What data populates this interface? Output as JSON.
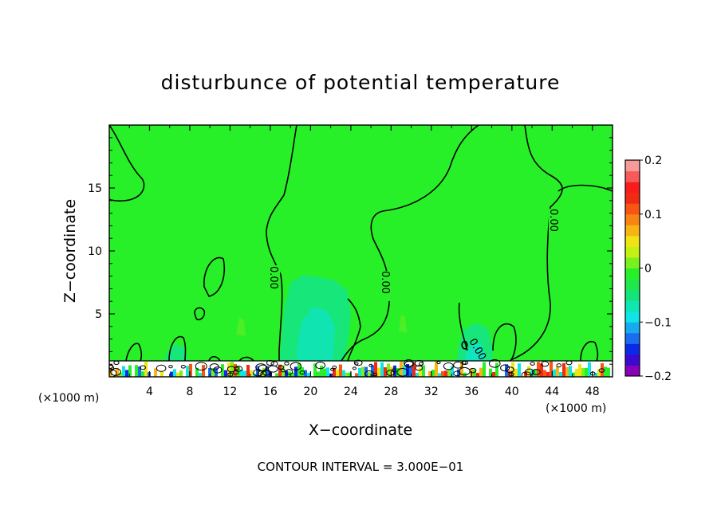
{
  "chart_data": {
    "type": "heatmap",
    "title": "disturbunce of potential temperature",
    "xlabel": "X−coordinate",
    "ylabel": "Z−coordinate",
    "x_unit": "(×1000 m)",
    "y_unit": "(×1000 m)",
    "xlim": [
      0,
      50
    ],
    "ylim": [
      0,
      20
    ],
    "x_ticks": [
      4,
      8,
      12,
      16,
      20,
      24,
      28,
      32,
      36,
      40,
      44,
      48
    ],
    "y_ticks": [
      5,
      10,
      15
    ],
    "colorbar": {
      "range": [
        -0.2,
        0.2
      ],
      "tick_values": [
        0.2,
        0.1,
        0,
        -0.1,
        -0.2
      ],
      "tick_labels": [
        "0.2",
        "0.1",
        "0",
        "−0.1",
        "−0.2"
      ],
      "colors": [
        "#8a00b8",
        "#3a0ad0",
        "#0a2ae8",
        "#1a6cf0",
        "#18aaf0",
        "#10e4e4",
        "#10e6b0",
        "#14e47a",
        "#1ee84a",
        "#28f028",
        "#7af01c",
        "#c4f014",
        "#f0e414",
        "#f8b414",
        "#f88414",
        "#f85414",
        "#f02a14",
        "#f81c1c",
        "#f85a5a",
        "#f89a9a"
      ]
    },
    "contour_label": "0.00",
    "contour_interval_text": "CONTOUR INTERVAL = 3.000E−01"
  },
  "colors": {
    "background_field": "#28f028",
    "negative_region": "#10e4a0",
    "cyan_region": "#12e8d8"
  }
}
